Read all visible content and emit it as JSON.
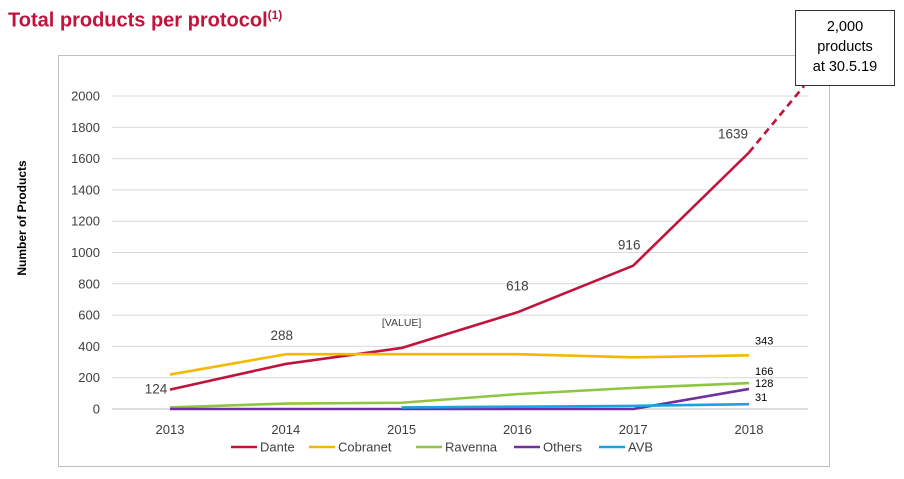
{
  "title": "Total products per protocol",
  "title_superscript": "(1)",
  "callout": {
    "line1": "2,000",
    "line2": "products",
    "line3": "at 30.5.19"
  },
  "chart_data": {
    "type": "line",
    "x": [
      "2013",
      "2014",
      "2015",
      "2016",
      "2017",
      "2018"
    ],
    "ylabel": "Number of Products",
    "ylim": [
      0,
      2000
    ],
    "yticks": [
      0,
      200,
      400,
      600,
      800,
      1000,
      1200,
      1400,
      1600,
      1800,
      2000
    ],
    "legend_position": "bottom",
    "grid": true,
    "series": [
      {
        "name": "Dante",
        "color": "#c0143c",
        "values": [
          124,
          288,
          390,
          618,
          916,
          1639
        ],
        "labels": [
          "124",
          "288",
          "[VALUE]",
          "618",
          "916",
          "1639"
        ],
        "projection": {
          "to_value": 2000,
          "style": "dashed"
        }
      },
      {
        "name": "Cobranet",
        "color": "#f5b800",
        "values": [
          220,
          350,
          350,
          350,
          330,
          343
        ],
        "labels": [
          "",
          "",
          "",
          "",
          "",
          "343"
        ]
      },
      {
        "name": "Ravenna",
        "color": "#8dc63f",
        "values": [
          10,
          35,
          40,
          95,
          135,
          166
        ],
        "labels": [
          "",
          "",
          "",
          "",
          "",
          "166"
        ]
      },
      {
        "name": "Others",
        "color": "#7030a0",
        "values": [
          0,
          0,
          0,
          0,
          0,
          128
        ],
        "labels": [
          "",
          "",
          "",
          "",
          "",
          "128"
        ]
      },
      {
        "name": "AVB",
        "color": "#1aa3e0",
        "values": [
          null,
          null,
          10,
          15,
          20,
          31
        ],
        "labels": [
          "",
          "",
          "",
          "",
          "",
          "31"
        ]
      }
    ]
  }
}
